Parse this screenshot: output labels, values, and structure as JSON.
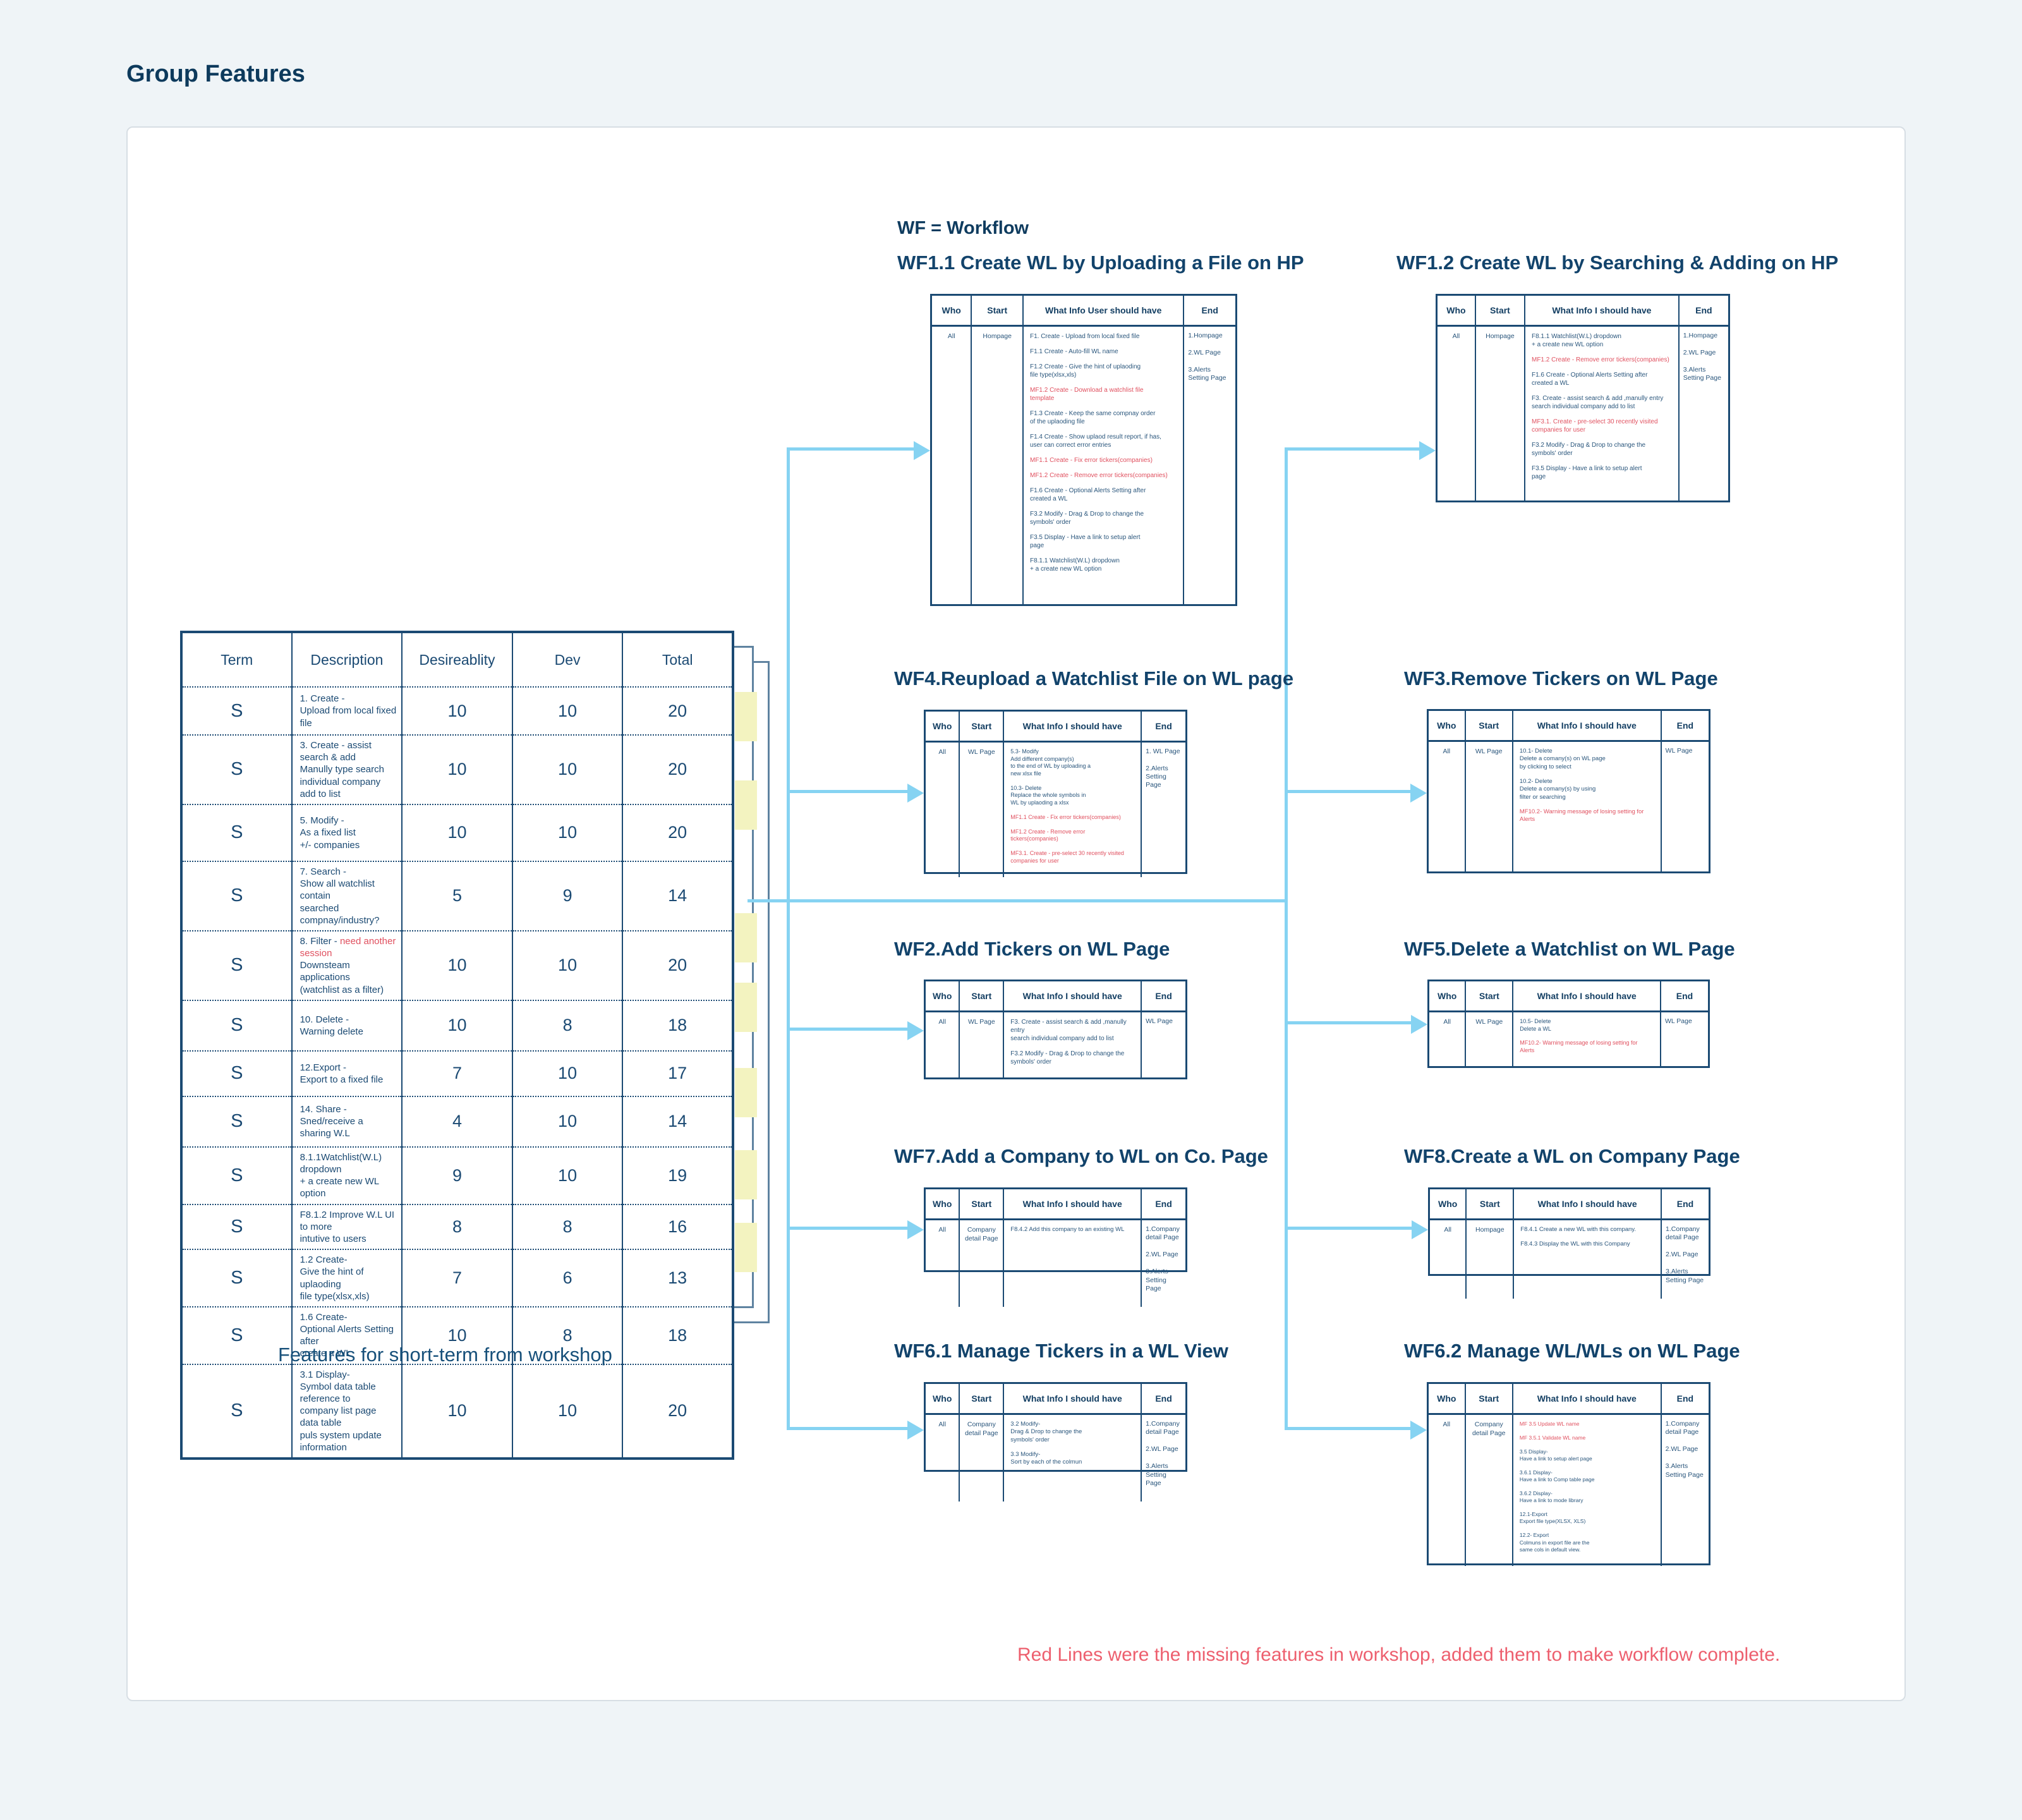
{
  "page": {
    "title": "Group Features",
    "wf_note": "WF = Workflow",
    "features_caption": "Features for short-term from workshop",
    "bottom_note": "Red Lines were the  missing features in workshop, added them to make workflow complete."
  },
  "colors": {
    "navy_heading": "#12436b",
    "table_navy": "#1b4a73",
    "red_item": "#e0505f",
    "note_red": "#ed5f6e",
    "connector_blue": "#86d3f2",
    "highlight_yellow": "#f3f3c0"
  },
  "features_table": {
    "headers": [
      "Term",
      "Description",
      "Desireablity",
      "Dev",
      "Total"
    ],
    "rows": [
      {
        "term": "S",
        "desc": [
          {
            "text": "1. Create -\nUpload from local fixed file"
          }
        ],
        "desirability": "10",
        "dev": "10",
        "total": "20"
      },
      {
        "term": "S",
        "desc": [
          {
            "text": "3. Create - assist search & add\nManully type search\nindividual company add to list"
          }
        ],
        "desirability": "10",
        "dev": "10",
        "total": "20"
      },
      {
        "term": "S",
        "desc": [
          {
            "text": "5. Modify -\nAs a fixed list\n+/- companies"
          }
        ],
        "desirability": "10",
        "dev": "10",
        "total": "20"
      },
      {
        "term": "S",
        "desc": [
          {
            "text": "7. Search -\nShow all watchlist contain\nsearched compnay/industry?"
          }
        ],
        "desirability": "5",
        "dev": "9",
        "total": "14"
      },
      {
        "term": "S",
        "desc": [
          {
            "text": "8. Filter - "
          },
          {
            "text": "need another session",
            "red": true
          },
          {
            "text": "\nDownsteam applications\n(watchlist as a filter)"
          }
        ],
        "desirability": "10",
        "dev": "10",
        "total": "20"
      },
      {
        "term": "S",
        "desc": [
          {
            "text": "10. Delete -\nWarning delete"
          }
        ],
        "desirability": "10",
        "dev": "8",
        "total": "18"
      },
      {
        "term": "S",
        "desc": [
          {
            "text": "12.Export -\nExport to a fixed file"
          }
        ],
        "desirability": "7",
        "dev": "10",
        "total": "17"
      },
      {
        "term": "S",
        "desc": [
          {
            "text": "14. Share -\nSned/receive a sharing W.L"
          }
        ],
        "desirability": "4",
        "dev": "10",
        "total": "14"
      },
      {
        "term": "S",
        "desc": [
          {
            "text": "8.1.1Watchlist(W.L) dropdown\n+ a create new WL option"
          }
        ],
        "desirability": "9",
        "dev": "10",
        "total": "19"
      },
      {
        "term": "S",
        "desc": [
          {
            "text": "F8.1.2  Improve W.L UI to more\nintutive to users"
          }
        ],
        "desirability": "8",
        "dev": "8",
        "total": "16"
      },
      {
        "term": "S",
        "desc": [
          {
            "text": "1.2 Create-\nGive the hint of uplaoding\nfile type(xlsx,xls)"
          }
        ],
        "desirability": "7",
        "dev": "6",
        "total": "13"
      },
      {
        "term": "S",
        "desc": [
          {
            "text": "1.6 Create-\nOptional Alerts Setting after\ncreate a WL"
          }
        ],
        "desirability": "10",
        "dev": "8",
        "total": "18"
      },
      {
        "term": "S",
        "desc": [
          {
            "text": "3.1 Display-\nSymbol data table reference to\ncompany list page data table\npuls system update information"
          }
        ],
        "desirability": "10",
        "dev": "10",
        "total": "20"
      }
    ]
  },
  "workflows": [
    {
      "id": "wf11",
      "title": "WF1.1  Create WL by Uploading a File on HP",
      "headers": {
        "who": "Who",
        "start": "Start",
        "info": "What Info User should have",
        "end": "End"
      },
      "who": "All",
      "start": "Hompage",
      "items": [
        {
          "text": "F1. Create - Upload from local fixed file"
        },
        {
          "text": "F1.1 Create - Auto-fill WL name"
        },
        {
          "text": "F1.2 Create - Give the hint of uplaoding\nfile type(xlsx,xls)"
        },
        {
          "text": "MF1.2 Create - Download a watchlist file\ntemplate",
          "red": true
        },
        {
          "text": "F1.3 Create - Keep the same compnay order\nof the uplaoding file"
        },
        {
          "text": "F1.4 Create - Show uplaod result report, if has,\nuser can correct error entries"
        },
        {
          "text": "MF1.1 Create - Fix error tickers(companies)",
          "red": true
        },
        {
          "text": "MF1.2 Create - Remove error tickers(companies)",
          "red": true
        },
        {
          "text": "F1.6 Create - Optional Alerts Setting after\ncreated a WL"
        },
        {
          "text": "F3.2 Modify - Drag & Drop to change the\nsymbols' order"
        },
        {
          "text": "F3.5 Display - Have a link to setup alert\npage"
        },
        {
          "text": "F8.1.1 Watchlist(W.L) dropdown\n+ a create new WL option"
        }
      ],
      "end": [
        "1.Hompage",
        "2.WL Page",
        "3.Alerts\nSetting Page"
      ]
    },
    {
      "id": "wf12",
      "title": "WF1.2  Create WL by Searching & Adding on HP",
      "headers": {
        "who": "Who",
        "start": "Start",
        "info": "What Info I should have",
        "end": "End"
      },
      "who": "All",
      "start": "Hompage",
      "items": [
        {
          "text": "F8.1.1 Watchlist(W.L) dropdown\n+ a create new WL option"
        },
        {
          "text": "MF1.2 Create - Remove error tickers(companies)",
          "red": true
        },
        {
          "text": "F1.6 Create - Optional Alerts Setting after\ncreated a WL"
        },
        {
          "text": "F3. Create - assist search & add ,manully entry\nsearch individual company add to list"
        },
        {
          "text": "MF3.1. Create - pre-select 30 recently visited\ncompanies for user",
          "red": true
        },
        {
          "text": "F3.2 Modify - Drag & Drop to change the\nsymbols' order"
        },
        {
          "text": "F3.5 Display - Have a link to setup alert\npage"
        }
      ],
      "end": [
        "1.Hompage",
        "2.WL Page",
        "3.Alerts\nSetting Page"
      ]
    },
    {
      "id": "wf4",
      "title": "WF4.Reupload a Watchlist File on WL page",
      "headers": {
        "who": "Who",
        "start": "Start",
        "info": "What Info I should have",
        "end": "End"
      },
      "who": "All",
      "start": "WL Page",
      "items": [
        {
          "text": "5.3- Modify\nAdd different company(s)\nto the end of  WL by uploading a\nnew xlsx file"
        },
        {
          "text": "10.3- Delete\nReplace the whole symbols in\nWL by uplaoding a xlsx"
        },
        {
          "text": "MF1.1 Create - Fix error tickers(companies)",
          "red": true
        },
        {
          "text": "MF1.2 Create - Remove error tickers(companies)",
          "red": true
        },
        {
          "text": "MF3.1. Create - pre-select 30 recently visited\ncompanies for user",
          "red": true
        }
      ],
      "end": [
        "1. WL Page",
        "2.Alerts\nSetting Page"
      ]
    },
    {
      "id": "wf3",
      "title": "WF3.Remove Tickers on WL Page",
      "headers": {
        "who": "Who",
        "start": "Start",
        "info": "What Info I should have",
        "end": "End"
      },
      "who": "All",
      "start": "WL Page",
      "items": [
        {
          "text": "10.1- Delete\nDelete a comany(s) on WL page\nby clicking to select"
        },
        {
          "text": "10.2- Delete\nDelete a comany(s) by using\nfilter or searching"
        },
        {
          "text": "MF10.2- Warning message of losing setting for\nAlerts",
          "red": true
        }
      ],
      "end": [
        "WL Page"
      ]
    },
    {
      "id": "wf2",
      "title": "WF2.Add Tickers on WL Page",
      "headers": {
        "who": "Who",
        "start": "Start",
        "info": "What Info I should have",
        "end": "End"
      },
      "who": "All",
      "start": "WL Page",
      "items": [
        {
          "text": "F3. Create - assist search & add ,manully entry\nsearch individual company add to list"
        },
        {
          "text": "F3.2 Modify - Drag & Drop to change the\nsymbols' order"
        }
      ],
      "end": [
        "WL Page"
      ]
    },
    {
      "id": "wf5",
      "title": "WF5.Delete a Watchlist on WL Page",
      "headers": {
        "who": "Who",
        "start": "Start",
        "info": "What Info I should have",
        "end": "End"
      },
      "who": "All",
      "start": "WL Page",
      "items": [
        {
          "text": "10.5- Delete\nDelete a WL"
        },
        {
          "text": "MF10.2- Warning message of losing setting for\nAlerts",
          "red": true
        }
      ],
      "end": [
        "WL Page"
      ]
    },
    {
      "id": "wf7",
      "title": "WF7.Add a Company to WL on Co. Page",
      "headers": {
        "who": "Who",
        "start": "Start",
        "info": "What Info I should have",
        "end": "End"
      },
      "who": "All",
      "start": "Company\ndetail Page",
      "items": [
        {
          "text": "F8.4.2  Add this company to an existing WL"
        }
      ],
      "end": [
        "1.Company\ndetail Page",
        "2.WL Page",
        "3.Alerts\nSetting Page"
      ]
    },
    {
      "id": "wf8",
      "title": "WF8.Create a WL on Company Page",
      "headers": {
        "who": "Who",
        "start": "Start",
        "info": "What Info I should have",
        "end": "End"
      },
      "who": "All",
      "start": "Hompage",
      "items": [
        {
          "text": "F8.4.1  Create a new WL with this company."
        },
        {
          "text": "F8.4.3  Display the WL with this Company"
        }
      ],
      "end": [
        "1.Company\ndetail Page",
        "2.WL Page",
        "3.Alerts\nSetting Page"
      ]
    },
    {
      "id": "wf61",
      "title": "WF6.1 Manage Tickers in a WL View",
      "headers": {
        "who": "Who",
        "start": "Start",
        "info": "What Info I should have",
        "end": "End"
      },
      "who": "All",
      "start": "Company\ndetail Page",
      "items": [
        {
          "text": "3.2 Modify-\nDrag & Drop to change the\nsymbols' order"
        },
        {
          "text": "3.3 Modify-\nSort by each of the colmun"
        }
      ],
      "end": [
        "1.Company\ndetail Page",
        "2.WL Page",
        "3.Alerts\nSetting Page"
      ]
    },
    {
      "id": "wf62",
      "title": "WF6.2 Manage WL/WLs on WL Page",
      "headers": {
        "who": "Who",
        "start": "Start",
        "info": "What Info I should have",
        "end": "End"
      },
      "who": "All",
      "start": "Company\ndetail Page",
      "items": [
        {
          "text": "MF 3.5 Update WL name",
          "red": true
        },
        {
          "text": "MF 3.5.1 Validate WL name",
          "red": true
        },
        {
          "text": "3.5 Display-\nHave a link to setup alert page"
        },
        {
          "text": "3.6.1 Display-\nHave a link to Comp table page"
        },
        {
          "text": "3.6.2 Display-\nHave a link to mode library"
        },
        {
          "text": "12.1-Export\nExport file type(XLSX, XLS)"
        },
        {
          "text": "12.2- Export\nColmuns in export file are the\nsame cols in default view."
        }
      ],
      "end": [
        "1.Company\ndetail Page",
        "2.WL Page",
        "3.Alerts\nSetting Page"
      ]
    }
  ]
}
